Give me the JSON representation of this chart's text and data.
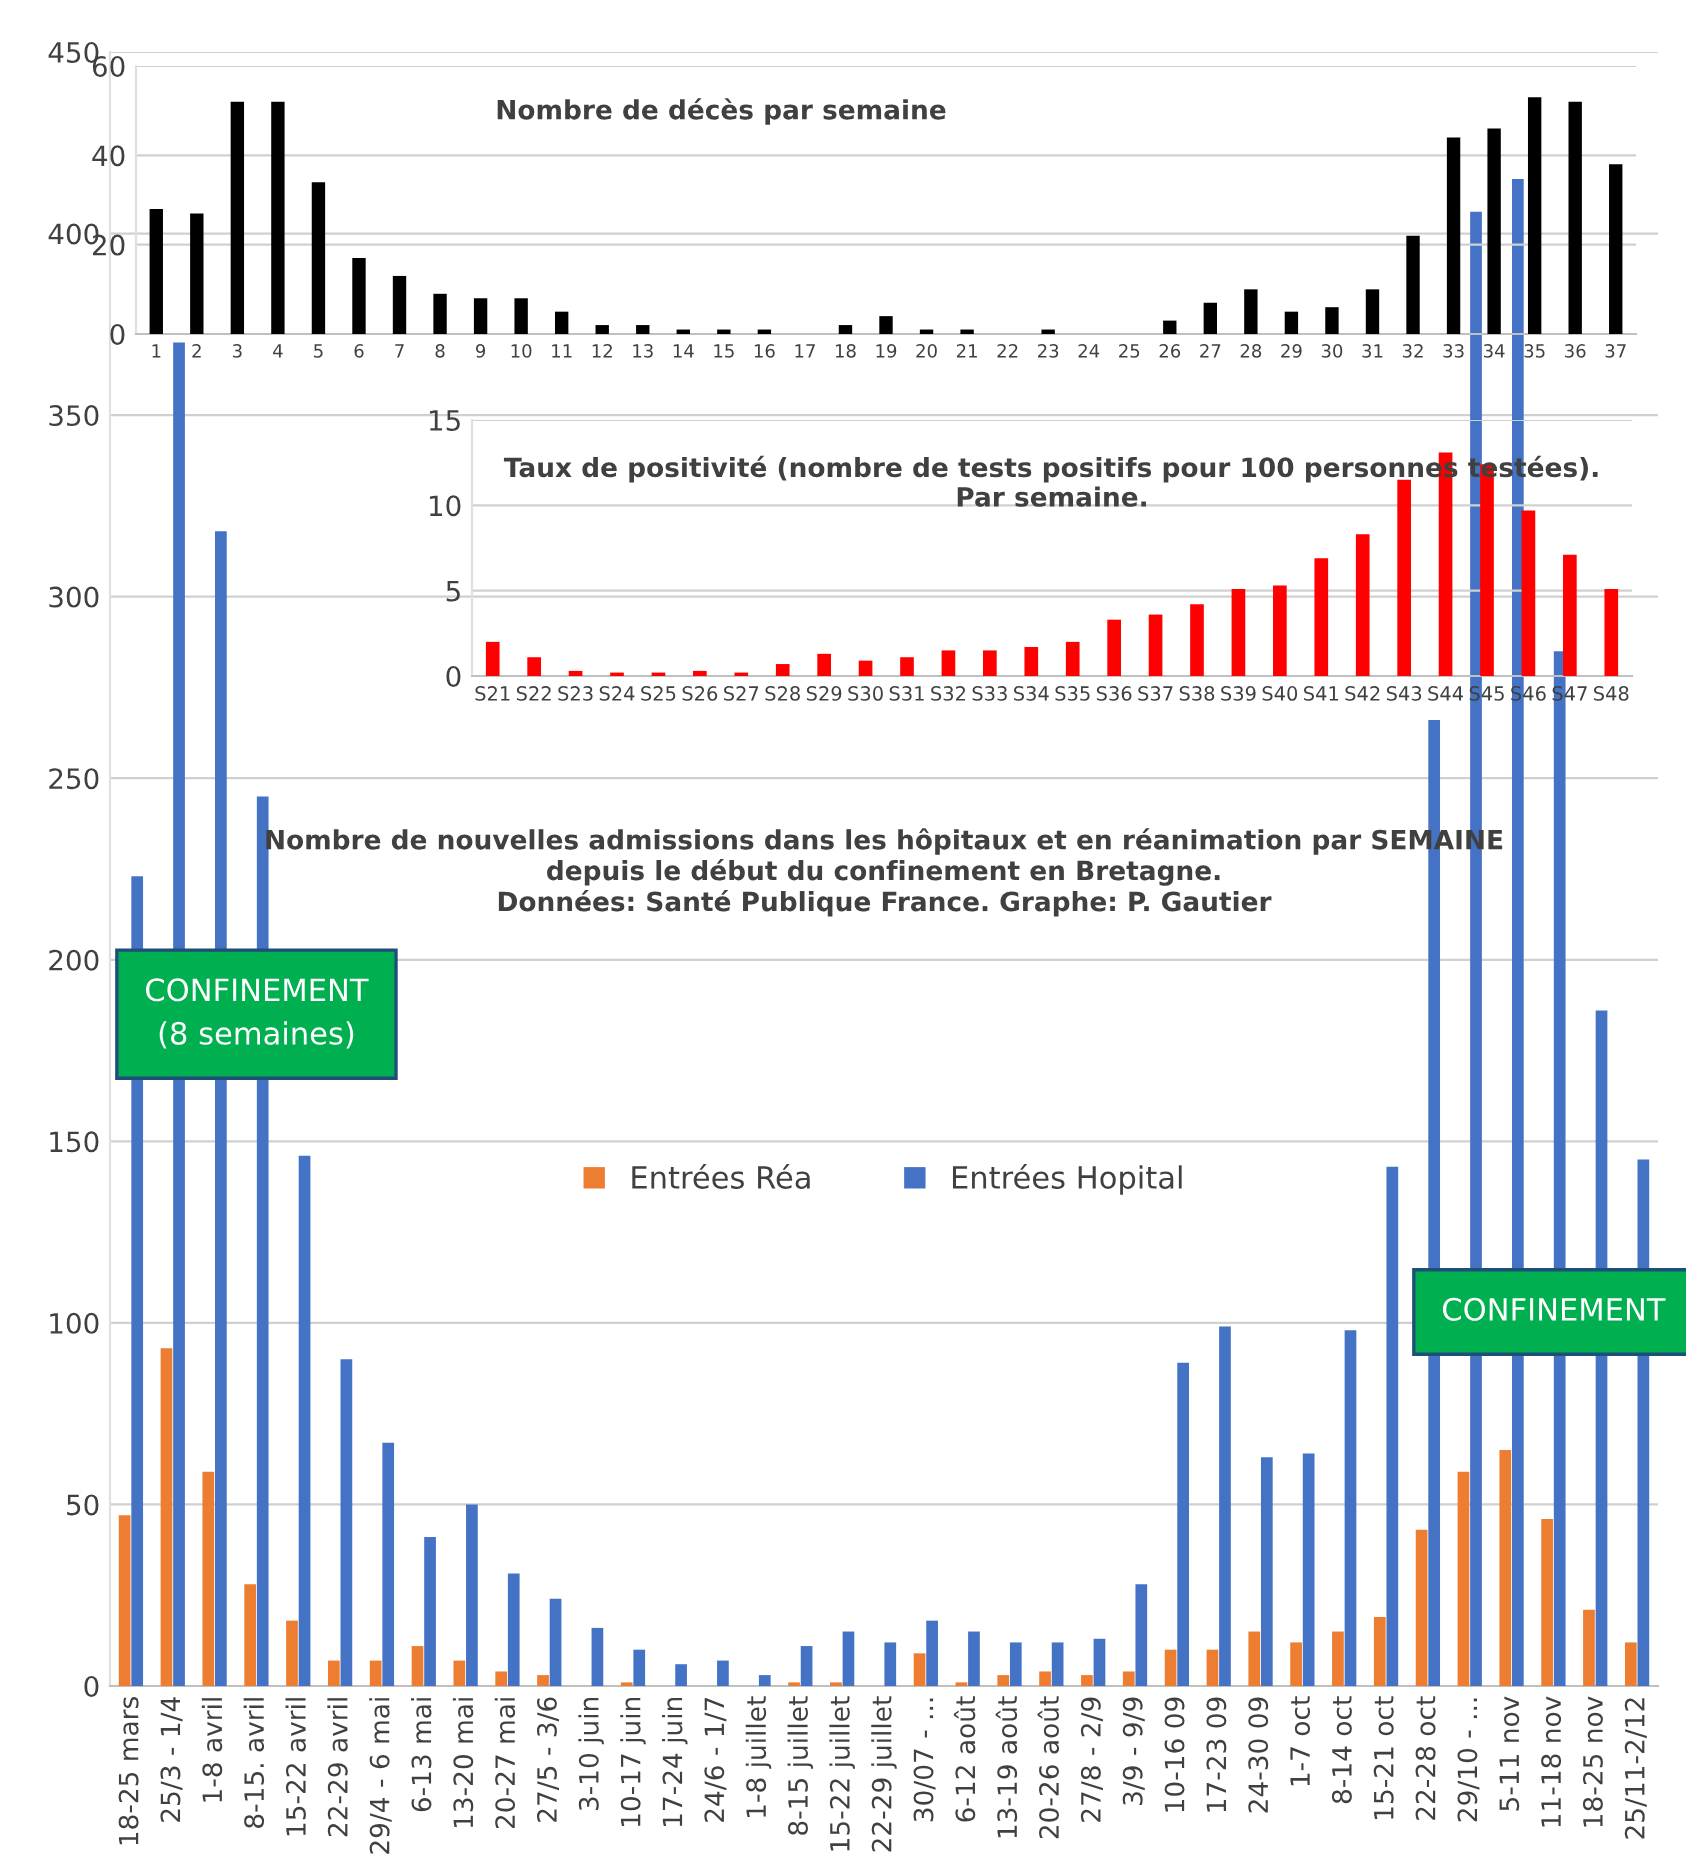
{
  "chart_data": [
    {
      "type": "bar",
      "title": "Nombre de décès par semaine",
      "categories": [
        "1",
        "2",
        "3",
        "4",
        "5",
        "6",
        "7",
        "8",
        "9",
        "10",
        "11",
        "12",
        "13",
        "14",
        "15",
        "16",
        "17",
        "18",
        "19",
        "20",
        "21",
        "22",
        "23",
        "24",
        "25",
        "26",
        "27",
        "28",
        "29",
        "30",
        "31",
        "32",
        "33",
        "34",
        "35",
        "36",
        "37"
      ],
      "series": [
        {
          "color": "#000000",
          "values": [
            28,
            27,
            52,
            52,
            34,
            17,
            13,
            9,
            8,
            8,
            5,
            2,
            2,
            1,
            1,
            1,
            0,
            2,
            4,
            1,
            1,
            0,
            1,
            0,
            0,
            3,
            7,
            10,
            5,
            6,
            10,
            22,
            44,
            46,
            53,
            52,
            38
          ]
        }
      ],
      "ylim": [
        0,
        60
      ],
      "yticks": [
        0,
        20,
        40,
        60
      ],
      "grid": "y",
      "legend": false
    },
    {
      "type": "bar",
      "title": "Taux de positivité (nombre de tests positifs pour 100 personnes testées).\nPar semaine.",
      "categories": [
        "S21",
        "S22",
        "S23",
        "S24",
        "S25",
        "S26",
        "S27",
        "S28",
        "S29",
        "S30",
        "S31",
        "S32",
        "S33",
        "S34",
        "S35",
        "S36",
        "S37",
        "S38",
        "S39",
        "S40",
        "S41",
        "S42",
        "S43",
        "S44",
        "S45",
        "S46",
        "S47",
        "S48"
      ],
      "series": [
        {
          "color": "#ff0000",
          "values": [
            2.0,
            1.1,
            0.3,
            0.2,
            0.2,
            0.3,
            0.2,
            0.7,
            1.3,
            0.9,
            1.1,
            1.5,
            1.5,
            1.7,
            2.0,
            3.3,
            3.6,
            4.2,
            5.1,
            5.3,
            6.9,
            8.3,
            11.5,
            13.1,
            12.4,
            9.7,
            7.1,
            5.1
          ]
        }
      ],
      "ylim": [
        0,
        15
      ],
      "yticks": [
        0,
        5,
        10,
        15
      ],
      "grid": "y",
      "legend": false
    },
    {
      "type": "bar",
      "title": "Nombre de nouvelles admissions dans les hôpitaux et en réanimation par SEMAINE\ndepuis le début du confinement en Bretagne.\nDonnées: Santé Publique France. Graphe: P. Gautier",
      "categories": [
        "18-25 mars",
        "25/3 - 1/4",
        "1-8 avril",
        "8-15. avril",
        "15-22 avril",
        "22-29 avril",
        "29/4 - 6 mai",
        "6-13 mai",
        "13-20 mai",
        "20-27 mai",
        "27/5 - 3/6",
        "3-10 juin",
        "10-17 juin",
        "17-24 juin",
        "24/6 - 1/7",
        "1-8 juillet",
        "8-15 juillet",
        "15-22 juillet",
        "22-29 juillet",
        "30/07 - ...",
        "6-12 août",
        "13-19 août",
        "20-26 août",
        "27/8 - 2/9",
        "3/9 - 9/9",
        "10-16 09",
        "17-23 09",
        "24-30 09",
        "1-7 oct",
        "8-14 oct",
        "15-21 oct",
        "22-28 oct",
        "29/10 - ...",
        "5-11 nov",
        "11-18 nov",
        "18-25 nov",
        "25/11-2/12"
      ],
      "series": [
        {
          "name": "Entrées Réa",
          "color": "#ed7d31",
          "values": [
            47,
            93,
            59,
            28,
            18,
            7,
            7,
            11,
            7,
            4,
            3,
            0,
            1,
            0,
            0,
            0,
            1,
            1,
            0,
            9,
            1,
            3,
            4,
            3,
            4,
            10,
            10,
            15,
            12,
            15,
            19,
            43,
            59,
            65,
            46,
            21,
            12
          ]
        },
        {
          "name": "Entrées Hopital",
          "color": "#4472c4",
          "values": [
            223,
            370,
            318,
            245,
            146,
            90,
            67,
            41,
            50,
            31,
            24,
            16,
            10,
            6,
            7,
            3,
            11,
            15,
            12,
            18,
            15,
            12,
            12,
            13,
            28,
            89,
            99,
            63,
            64,
            98,
            143,
            266,
            406,
            415,
            285,
            186,
            145
          ]
        }
      ],
      "ylim": [
        0,
        450
      ],
      "yticks": [
        0,
        50,
        100,
        150,
        200,
        250,
        300,
        350,
        400,
        450
      ],
      "grid": "y",
      "legend": "center",
      "annotations": [
        {
          "text": "CONFINEMENT\n(8 semaines)",
          "x": "8-15. avril",
          "y": 185
        },
        {
          "text": "CONFINEMENT",
          "x": "11-18 nov",
          "y": 103
        }
      ]
    }
  ]
}
